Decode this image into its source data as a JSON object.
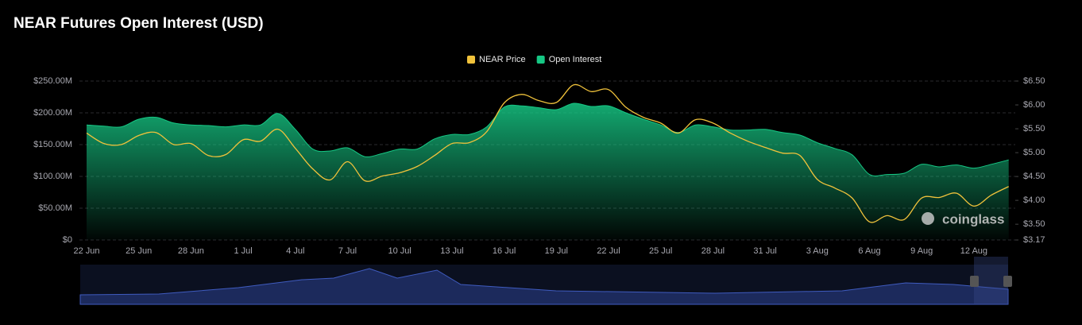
{
  "chart_data": {
    "type": "area-line",
    "title": "NEAR Futures Open Interest (USD)",
    "watermark": "coinglass",
    "categories": [
      "22 Jun",
      null,
      null,
      "25 Jun",
      null,
      null,
      "28 Jun",
      null,
      null,
      "1 Jul",
      null,
      null,
      "4 Jul",
      null,
      null,
      "7 Jul",
      null,
      null,
      "10 Jul",
      null,
      null,
      "13 Jul",
      null,
      null,
      "16 Jul",
      null,
      null,
      "19 Jul",
      null,
      null,
      "22 Jul",
      null,
      null,
      "25 Jul",
      null,
      null,
      "28 Jul",
      null,
      null,
      "31 Jul",
      null,
      null,
      "3 Aug",
      null,
      null,
      "6 Aug",
      null,
      null,
      "9 Aug",
      null,
      null,
      "12 Aug",
      null,
      null
    ],
    "series": [
      {
        "name": "Open Interest",
        "color": "#16c784",
        "axis": "y",
        "values": [
          181000000,
          179000000,
          178000000,
          190000000,
          193000000,
          184000000,
          181000000,
          180000000,
          178000000,
          181000000,
          181000000,
          199000000,
          174000000,
          143000000,
          140000000,
          145000000,
          131000000,
          136000000,
          143000000,
          143000000,
          159000000,
          166000000,
          166000000,
          178000000,
          209000000,
          211000000,
          208000000,
          205000000,
          215000000,
          210000000,
          211000000,
          200000000,
          190000000,
          181000000,
          169000000,
          181000000,
          178000000,
          173000000,
          173000000,
          174000000,
          169000000,
          165000000,
          153000000,
          144000000,
          134000000,
          103000000,
          103000000,
          105000000,
          119000000,
          115000000,
          118000000,
          113000000,
          119000000,
          126000000
        ]
      },
      {
        "name": "NEAR Price",
        "color": "#f0c23b",
        "axis": "y2",
        "values": [
          5.41,
          5.19,
          5.17,
          5.36,
          5.42,
          5.17,
          5.19,
          4.94,
          4.96,
          5.27,
          5.24,
          5.49,
          5.09,
          4.66,
          4.43,
          4.81,
          4.41,
          4.51,
          4.58,
          4.71,
          4.94,
          5.19,
          5.21,
          5.44,
          6.04,
          6.22,
          6.09,
          6.05,
          6.42,
          6.28,
          6.32,
          5.95,
          5.74,
          5.62,
          5.41,
          5.69,
          5.62,
          5.41,
          5.24,
          5.11,
          4.99,
          4.94,
          4.44,
          4.26,
          4.05,
          3.55,
          3.68,
          3.6,
          4.05,
          4.06,
          4.15,
          3.88,
          4.11,
          4.29
        ]
      }
    ],
    "ylim": [
      0,
      250000000
    ],
    "yticks": [
      {
        "value": 0,
        "label": "$0"
      },
      {
        "value": 50000000,
        "label": "$50.00M"
      },
      {
        "value": 100000000,
        "label": "$100.00M"
      },
      {
        "value": 150000000,
        "label": "$150.00M"
      },
      {
        "value": 200000000,
        "label": "$200.00M"
      },
      {
        "value": 250000000,
        "label": "$250.00M"
      }
    ],
    "y2lim": [
      3.17,
      6.5
    ],
    "y2ticks": [
      {
        "value": 3.17,
        "label": "$3.17"
      },
      {
        "value": 3.5,
        "label": "$3.50"
      },
      {
        "value": 4,
        "label": "$4.00"
      },
      {
        "value": 4.5,
        "label": "$4.50"
      },
      {
        "value": 5,
        "label": "$5.00"
      },
      {
        "value": 5.5,
        "label": "$5.50"
      },
      {
        "value": 6,
        "label": "$6.00"
      },
      {
        "value": 6.5,
        "label": "$6.50"
      }
    ],
    "grid": true,
    "legend": "top"
  }
}
